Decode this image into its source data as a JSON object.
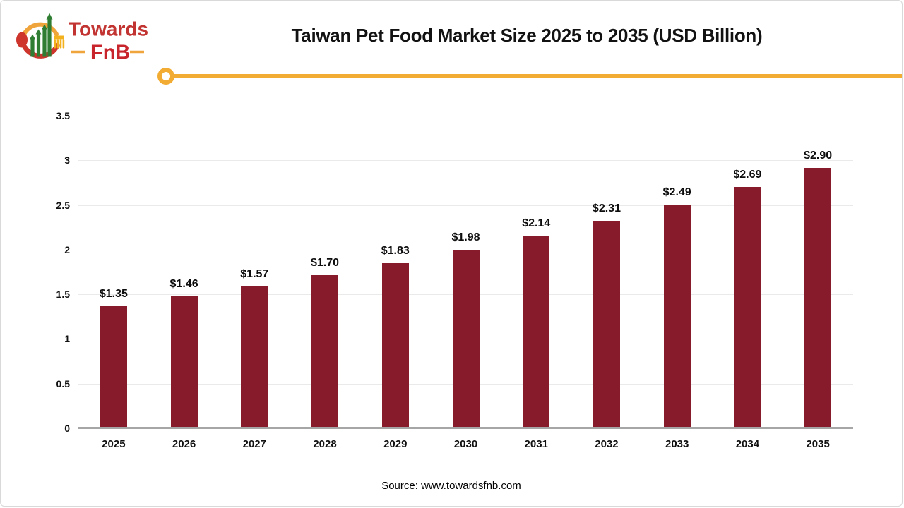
{
  "logo": {
    "brand_line1": "Towards",
    "brand_line2": "FnB"
  },
  "header": {
    "title": "Taiwan Pet Food Market Size 2025 to 2035 (USD Billion)"
  },
  "chart_data": {
    "type": "bar",
    "title": "Taiwan Pet Food Market Size 2025 to 2035 (USD Billion)",
    "categories": [
      "2025",
      "2026",
      "2027",
      "2028",
      "2029",
      "2030",
      "2031",
      "2032",
      "2033",
      "2034",
      "2035"
    ],
    "values": [
      1.35,
      1.46,
      1.57,
      1.7,
      1.83,
      1.98,
      2.14,
      2.31,
      2.49,
      2.69,
      2.9
    ],
    "value_labels": [
      "$1.35",
      "$1.46",
      "$1.57",
      "$1.70",
      "$1.83",
      "$1.98",
      "$2.14",
      "$2.31",
      "$2.49",
      "$2.69",
      "$2.90"
    ],
    "xlabel": "",
    "ylabel": "",
    "ylim": [
      0,
      3.5
    ],
    "yticks": [
      0,
      0.5,
      1,
      1.5,
      2,
      2.5,
      3,
      3.5
    ],
    "ytick_labels": [
      "0",
      "0.5",
      "1",
      "1.5",
      "2",
      "2.5",
      "3",
      "3.5"
    ],
    "grid": true,
    "legend": "none",
    "bar_color": "#871B2B"
  },
  "footer": {
    "source": "Source: www.towardsfnb.com"
  },
  "colors": {
    "bar": "#871B2B",
    "accent_yellow": "#F2AC33",
    "logo_red": "#C23431",
    "logo_green": "#2E7D32",
    "gridline": "#EAEAEA",
    "axis": "#A6A6A6"
  }
}
